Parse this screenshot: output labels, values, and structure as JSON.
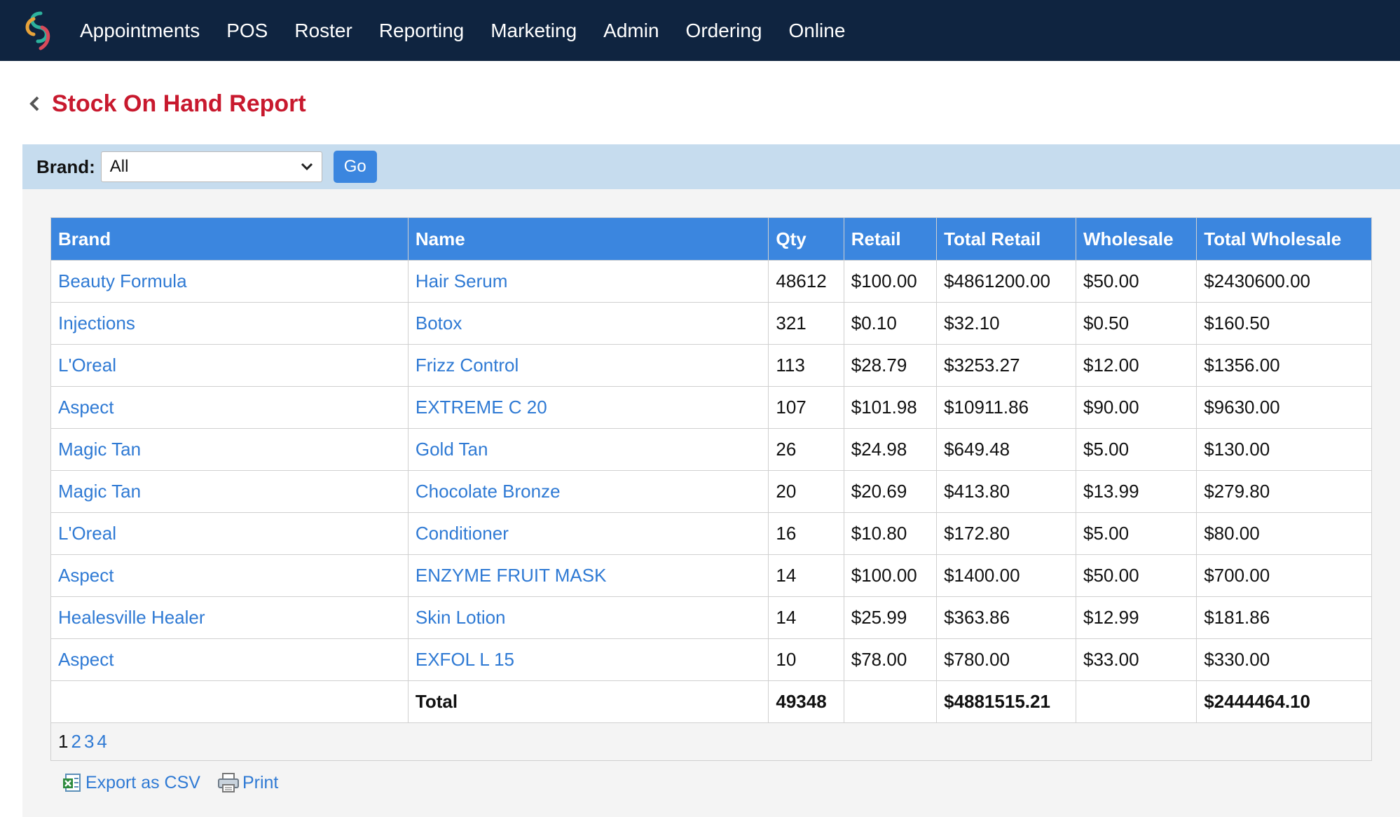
{
  "nav": {
    "items": [
      "Appointments",
      "POS",
      "Roster",
      "Reporting",
      "Marketing",
      "Admin",
      "Ordering",
      "Online"
    ]
  },
  "page": {
    "title": "Stock On Hand Report"
  },
  "filter": {
    "label": "Brand:",
    "selected": "All",
    "go_label": "Go"
  },
  "table": {
    "headers": [
      "Brand",
      "Name",
      "Qty",
      "Retail",
      "Total Retail",
      "Wholesale",
      "Total Wholesale"
    ],
    "rows": [
      [
        "Beauty Formula",
        "Hair Serum",
        "48612",
        "$100.00",
        "$4861200.00",
        "$50.00",
        "$2430600.00"
      ],
      [
        "Injections",
        "Botox",
        "321",
        "$0.10",
        "$32.10",
        "$0.50",
        "$160.50"
      ],
      [
        "L'Oreal",
        "Frizz Control",
        "113",
        "$28.79",
        "$3253.27",
        "$12.00",
        "$1356.00"
      ],
      [
        "Aspect",
        "EXTREME C 20",
        "107",
        "$101.98",
        "$10911.86",
        "$90.00",
        "$9630.00"
      ],
      [
        "Magic Tan",
        "Gold Tan",
        "26",
        "$24.98",
        "$649.48",
        "$5.00",
        "$130.00"
      ],
      [
        "Magic Tan",
        "Chocolate Bronze",
        "20",
        "$20.69",
        "$413.80",
        "$13.99",
        "$279.80"
      ],
      [
        "L'Oreal",
        "Conditioner",
        "16",
        "$10.80",
        "$172.80",
        "$5.00",
        "$80.00"
      ],
      [
        "Aspect",
        "ENZYME FRUIT MASK",
        "14",
        "$100.00",
        "$1400.00",
        "$50.00",
        "$700.00"
      ],
      [
        "Healesville Healer",
        "Skin Lotion",
        "14",
        "$25.99",
        "$363.86",
        "$12.99",
        "$181.86"
      ],
      [
        "Aspect",
        "EXFOL L 15",
        "10",
        "$78.00",
        "$780.00",
        "$33.00",
        "$330.00"
      ]
    ],
    "total": {
      "label": "Total",
      "qty": "49348",
      "total_retail": "$4881515.21",
      "total_wholesale": "$2444464.10"
    }
  },
  "pagination": {
    "pages": [
      "1",
      "2",
      "3",
      "4"
    ],
    "current": "1"
  },
  "actions": {
    "export_label": "Export as CSV",
    "print_label": "Print"
  },
  "colors": {
    "nav_bg": "#0f2440",
    "title": "#c8192e",
    "header_bg": "#3b86df",
    "link": "#2f7ad4",
    "filter_bg": "#c6dcee"
  }
}
